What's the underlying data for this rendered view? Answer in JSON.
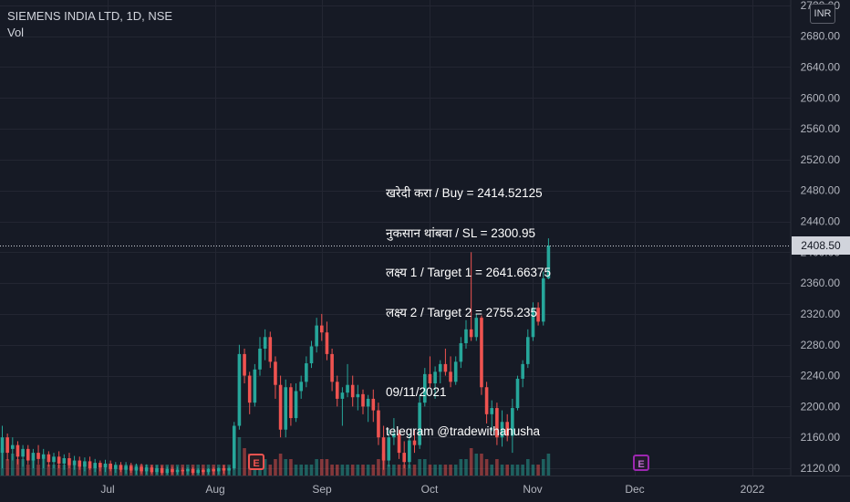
{
  "header": {
    "symbol_line": "SIEMENS INDIA LTD, 1D, NSE",
    "volume_label": "Vol"
  },
  "currency_badge": "INR",
  "last_price_label": "2408.50",
  "note_lines": [
    "खरेदी करा / Buy = 2414.52125",
    "नुकसान थांबवा / SL = 2300.95",
    "लक्ष्य 1 / Target 1 = 2641.66375",
    "लक्ष्य 2 / Target 2 = 2755.235",
    "",
    "09/11/2021",
    "telegram @tradewithanusha"
  ],
  "earnings_markers": [
    "E",
    "E"
  ],
  "colors": {
    "background": "#161a25",
    "up": "#26a69a",
    "down": "#ef5350",
    "grid": "#232632",
    "axis_text": "#b2b5be"
  },
  "chart_data": {
    "type": "candlestick",
    "title": "SIEMENS INDIA LTD, 1D, NSE",
    "y_axis": {
      "ticks": [
        2120,
        2160,
        2200,
        2240,
        2280,
        2320,
        2360,
        2400,
        2440,
        2480,
        2520,
        2560,
        2600,
        2640,
        2680,
        2720
      ],
      "tick_labels": [
        "2120.00",
        "2160.00",
        "2200.00",
        "2240.00",
        "2280.00",
        "2320.00",
        "2360.00",
        "2400.00",
        "2440.00",
        "2480.00",
        "2520.00",
        "2560.00",
        "2600.00",
        "2640.00",
        "2680.00",
        "2720.00"
      ],
      "range": [
        2112,
        2728
      ]
    },
    "x_axis": {
      "labels": [
        "Jul",
        "Aug",
        "Sep",
        "Oct",
        "Nov",
        "Dec",
        "2022"
      ]
    },
    "last_price": 2408.5,
    "grid": true,
    "ohlc": [
      {
        "o": 2140,
        "h": 2175,
        "l": 2120,
        "c": 2160
      },
      {
        "o": 2160,
        "h": 2165,
        "l": 2130,
        "c": 2140
      },
      {
        "o": 2145,
        "h": 2160,
        "l": 2130,
        "c": 2150
      },
      {
        "o": 2150,
        "h": 2155,
        "l": 2125,
        "c": 2135
      },
      {
        "o": 2135,
        "h": 2150,
        "l": 2122,
        "c": 2145
      },
      {
        "o": 2145,
        "h": 2150,
        "l": 2125,
        "c": 2130
      },
      {
        "o": 2130,
        "h": 2145,
        "l": 2120,
        "c": 2140
      },
      {
        "o": 2140,
        "h": 2150,
        "l": 2125,
        "c": 2132
      },
      {
        "o": 2132,
        "h": 2145,
        "l": 2120,
        "c": 2138
      },
      {
        "o": 2138,
        "h": 2142,
        "l": 2122,
        "c": 2128
      },
      {
        "o": 2128,
        "h": 2140,
        "l": 2120,
        "c": 2135
      },
      {
        "o": 2135,
        "h": 2142,
        "l": 2120,
        "c": 2126
      },
      {
        "o": 2126,
        "h": 2138,
        "l": 2118,
        "c": 2133
      },
      {
        "o": 2133,
        "h": 2140,
        "l": 2120,
        "c": 2124
      },
      {
        "o": 2124,
        "h": 2136,
        "l": 2118,
        "c": 2130
      },
      {
        "o": 2130,
        "h": 2135,
        "l": 2118,
        "c": 2122
      },
      {
        "o": 2122,
        "h": 2134,
        "l": 2116,
        "c": 2129
      },
      {
        "o": 2129,
        "h": 2135,
        "l": 2118,
        "c": 2120
      },
      {
        "o": 2120,
        "h": 2132,
        "l": 2115,
        "c": 2127
      },
      {
        "o": 2127,
        "h": 2130,
        "l": 2116,
        "c": 2121
      },
      {
        "o": 2121,
        "h": 2131,
        "l": 2115,
        "c": 2126
      },
      {
        "o": 2126,
        "h": 2130,
        "l": 2116,
        "c": 2119
      },
      {
        "o": 2119,
        "h": 2128,
        "l": 2114,
        "c": 2124
      },
      {
        "o": 2124,
        "h": 2128,
        "l": 2115,
        "c": 2118
      },
      {
        "o": 2118,
        "h": 2128,
        "l": 2113,
        "c": 2123
      },
      {
        "o": 2123,
        "h": 2127,
        "l": 2114,
        "c": 2117
      },
      {
        "o": 2117,
        "h": 2126,
        "l": 2112,
        "c": 2122
      },
      {
        "o": 2122,
        "h": 2126,
        "l": 2113,
        "c": 2116
      },
      {
        "o": 2116,
        "h": 2125,
        "l": 2112,
        "c": 2121
      },
      {
        "o": 2121,
        "h": 2124,
        "l": 2113,
        "c": 2115
      },
      {
        "o": 2115,
        "h": 2124,
        "l": 2112,
        "c": 2120
      },
      {
        "o": 2120,
        "h": 2123,
        "l": 2112,
        "c": 2114
      },
      {
        "o": 2114,
        "h": 2122,
        "l": 2112,
        "c": 2119
      },
      {
        "o": 2119,
        "h": 2122,
        "l": 2112,
        "c": 2115
      },
      {
        "o": 2115,
        "h": 2122,
        "l": 2112,
        "c": 2118
      },
      {
        "o": 2118,
        "h": 2121,
        "l": 2112,
        "c": 2116
      },
      {
        "o": 2116,
        "h": 2121,
        "l": 2112,
        "c": 2119
      },
      {
        "o": 2119,
        "h": 2121,
        "l": 2112,
        "c": 2114
      },
      {
        "o": 2114,
        "h": 2120,
        "l": 2112,
        "c": 2118
      },
      {
        "o": 2118,
        "h": 2120,
        "l": 2112,
        "c": 2115
      },
      {
        "o": 2115,
        "h": 2120,
        "l": 2112,
        "c": 2119
      },
      {
        "o": 2119,
        "h": 2121,
        "l": 2112,
        "c": 2116
      },
      {
        "o": 2116,
        "h": 2121,
        "l": 2112,
        "c": 2120
      },
      {
        "o": 2120,
        "h": 2124,
        "l": 2113,
        "c": 2117
      },
      {
        "o": 2117,
        "h": 2122,
        "l": 2112,
        "c": 2120
      },
      {
        "o": 2120,
        "h": 2180,
        "l": 2118,
        "c": 2175
      },
      {
        "o": 2175,
        "h": 2280,
        "l": 2170,
        "c": 2268
      },
      {
        "o": 2268,
        "h": 2275,
        "l": 2230,
        "c": 2240
      },
      {
        "o": 2240,
        "h": 2245,
        "l": 2190,
        "c": 2205
      },
      {
        "o": 2205,
        "h": 2255,
        "l": 2200,
        "c": 2248
      },
      {
        "o": 2248,
        "h": 2290,
        "l": 2240,
        "c": 2275
      },
      {
        "o": 2275,
        "h": 2300,
        "l": 2260,
        "c": 2290
      },
      {
        "o": 2290,
        "h": 2297,
        "l": 2250,
        "c": 2258
      },
      {
        "o": 2258,
        "h": 2265,
        "l": 2210,
        "c": 2228
      },
      {
        "o": 2228,
        "h": 2240,
        "l": 2160,
        "c": 2170
      },
      {
        "o": 2170,
        "h": 2235,
        "l": 2160,
        "c": 2225
      },
      {
        "o": 2225,
        "h": 2230,
        "l": 2175,
        "c": 2185
      },
      {
        "o": 2185,
        "h": 2230,
        "l": 2180,
        "c": 2220
      },
      {
        "o": 2220,
        "h": 2240,
        "l": 2210,
        "c": 2232
      },
      {
        "o": 2232,
        "h": 2265,
        "l": 2225,
        "c": 2256
      },
      {
        "o": 2256,
        "h": 2285,
        "l": 2250,
        "c": 2278
      },
      {
        "o": 2278,
        "h": 2315,
        "l": 2270,
        "c": 2305
      },
      {
        "o": 2305,
        "h": 2320,
        "l": 2285,
        "c": 2296
      },
      {
        "o": 2296,
        "h": 2310,
        "l": 2260,
        "c": 2268
      },
      {
        "o": 2268,
        "h": 2275,
        "l": 2220,
        "c": 2232
      },
      {
        "o": 2232,
        "h": 2240,
        "l": 2200,
        "c": 2210
      },
      {
        "o": 2210,
        "h": 2225,
        "l": 2175,
        "c": 2218
      },
      {
        "o": 2218,
        "h": 2255,
        "l": 2212,
        "c": 2228
      },
      {
        "o": 2228,
        "h": 2240,
        "l": 2200,
        "c": 2212
      },
      {
        "o": 2212,
        "h": 2228,
        "l": 2195,
        "c": 2216
      },
      {
        "o": 2216,
        "h": 2222,
        "l": 2190,
        "c": 2200
      },
      {
        "o": 2200,
        "h": 2215,
        "l": 2180,
        "c": 2210
      },
      {
        "o": 2210,
        "h": 2222,
        "l": 2180,
        "c": 2195
      },
      {
        "o": 2195,
        "h": 2205,
        "l": 2150,
        "c": 2160
      },
      {
        "o": 2160,
        "h": 2175,
        "l": 2118,
        "c": 2130
      },
      {
        "o": 2130,
        "h": 2170,
        "l": 2122,
        "c": 2160
      },
      {
        "o": 2160,
        "h": 2185,
        "l": 2150,
        "c": 2165
      },
      {
        "o": 2165,
        "h": 2170,
        "l": 2132,
        "c": 2140
      },
      {
        "o": 2140,
        "h": 2155,
        "l": 2120,
        "c": 2128
      },
      {
        "o": 2128,
        "h": 2165,
        "l": 2120,
        "c": 2156
      },
      {
        "o": 2156,
        "h": 2170,
        "l": 2140,
        "c": 2150
      },
      {
        "o": 2150,
        "h": 2215,
        "l": 2145,
        "c": 2205
      },
      {
        "o": 2205,
        "h": 2250,
        "l": 2200,
        "c": 2242
      },
      {
        "o": 2242,
        "h": 2265,
        "l": 2225,
        "c": 2230
      },
      {
        "o": 2230,
        "h": 2252,
        "l": 2210,
        "c": 2245
      },
      {
        "o": 2245,
        "h": 2260,
        "l": 2230,
        "c": 2255
      },
      {
        "o": 2255,
        "h": 2275,
        "l": 2240,
        "c": 2245
      },
      {
        "o": 2245,
        "h": 2265,
        "l": 2225,
        "c": 2232
      },
      {
        "o": 2232,
        "h": 2265,
        "l": 2228,
        "c": 2258
      },
      {
        "o": 2258,
        "h": 2290,
        "l": 2250,
        "c": 2282
      },
      {
        "o": 2282,
        "h": 2312,
        "l": 2275,
        "c": 2300
      },
      {
        "o": 2300,
        "h": 2400,
        "l": 2285,
        "c": 2290
      },
      {
        "o": 2290,
        "h": 2320,
        "l": 2285,
        "c": 2315
      },
      {
        "o": 2315,
        "h": 2318,
        "l": 2215,
        "c": 2225
      },
      {
        "o": 2225,
        "h": 2232,
        "l": 2178,
        "c": 2190
      },
      {
        "o": 2190,
        "h": 2208,
        "l": 2168,
        "c": 2198
      },
      {
        "o": 2198,
        "h": 2205,
        "l": 2150,
        "c": 2160
      },
      {
        "o": 2160,
        "h": 2195,
        "l": 2148,
        "c": 2180
      },
      {
        "o": 2180,
        "h": 2190,
        "l": 2155,
        "c": 2162
      },
      {
        "o": 2162,
        "h": 2210,
        "l": 2140,
        "c": 2198
      },
      {
        "o": 2198,
        "h": 2240,
        "l": 2195,
        "c": 2236
      },
      {
        "o": 2236,
        "h": 2260,
        "l": 2225,
        "c": 2255
      },
      {
        "o": 2255,
        "h": 2300,
        "l": 2250,
        "c": 2290
      },
      {
        "o": 2290,
        "h": 2335,
        "l": 2285,
        "c": 2328
      },
      {
        "o": 2328,
        "h": 2335,
        "l": 2305,
        "c": 2310
      },
      {
        "o": 2310,
        "h": 2375,
        "l": 2305,
        "c": 2366
      },
      {
        "o": 2366,
        "h": 2418,
        "l": 2365,
        "c": 2408.5
      }
    ],
    "volume": [
      5,
      3,
      4,
      3,
      3,
      2,
      3,
      2,
      3,
      2,
      2,
      2,
      2,
      2,
      2,
      2,
      2,
      2,
      2,
      2,
      2,
      2,
      2,
      2,
      2,
      2,
      2,
      2,
      2,
      2,
      2,
      2,
      2,
      2,
      2,
      2,
      2,
      2,
      2,
      2,
      2,
      2,
      2,
      2,
      2,
      4,
      7,
      5,
      4,
      3,
      3,
      3,
      2,
      3,
      4,
      3,
      3,
      2,
      2,
      2,
      2,
      3,
      3,
      3,
      2,
      2,
      2,
      2,
      2,
      2,
      2,
      2,
      2,
      3,
      4,
      2,
      2,
      2,
      2,
      2,
      2,
      3,
      3,
      2,
      2,
      2,
      2,
      2,
      2,
      3,
      3,
      5,
      4,
      4,
      3,
      2,
      3,
      2,
      2,
      2,
      2,
      2,
      3,
      2,
      2,
      3,
      4
    ]
  }
}
